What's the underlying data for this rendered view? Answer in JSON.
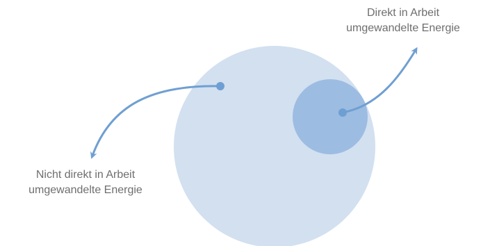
{
  "diagram": {
    "label_direct": {
      "line1": "Direkt in Arbeit",
      "line2": "umgewandelte Energie"
    },
    "label_indirect": {
      "line1": "Nicht direkt in Arbeit",
      "line2": "umgewandelte Energie"
    },
    "colors": {
      "outer_circle": "#d2e0f0",
      "inner_circle": "#9dbce2",
      "arrow": "#6f9fd2",
      "text": "#6e6e6e"
    },
    "icons": {
      "arrow_direct": "curved-arrow-icon",
      "arrow_indirect": "curved-arrow-icon"
    }
  }
}
